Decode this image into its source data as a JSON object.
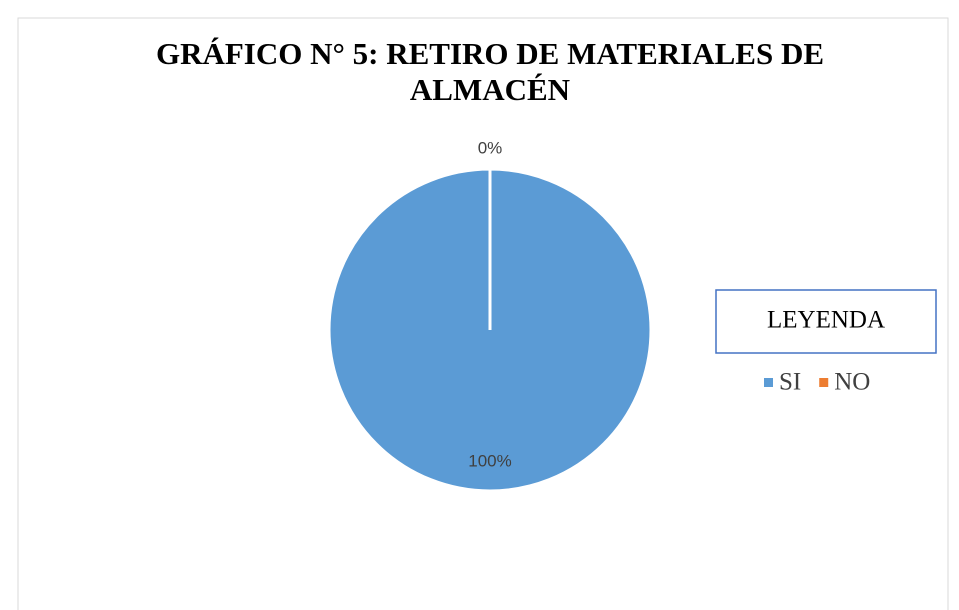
{
  "chart_data": {
    "type": "pie",
    "title": "GRÁFICO N° 5: RETIRO DE MATERIALES DE ALMACÉN",
    "categories": [
      "SI",
      "NO"
    ],
    "values": [
      100,
      0
    ],
    "value_labels": [
      "100%",
      "0%"
    ],
    "colors": [
      "#5b9bd5",
      "#ed7d31"
    ],
    "legend_title": "LEYENDA",
    "legend": "right"
  }
}
